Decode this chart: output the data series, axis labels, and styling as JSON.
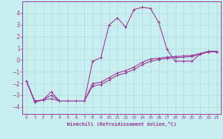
{
  "xlabel": "Windchill (Refroidissement éolien,°C)",
  "background_color": "#c8eef0",
  "grid_color": "#b0d8dc",
  "line_color": "#993399",
  "xlim": [
    -0.5,
    23.5
  ],
  "ylim": [
    -4.6,
    5.0
  ],
  "xticks": [
    0,
    1,
    2,
    3,
    4,
    5,
    6,
    7,
    8,
    9,
    10,
    11,
    12,
    13,
    14,
    15,
    16,
    17,
    18,
    19,
    20,
    21,
    22,
    23
  ],
  "yticks": [
    -4,
    -3,
    -2,
    -1,
    0,
    1,
    2,
    3,
    4
  ],
  "series1_x": [
    0,
    1,
    2,
    3,
    4,
    5,
    6,
    7,
    8,
    9,
    10,
    11,
    12,
    13,
    14,
    15,
    16,
    17,
    18,
    19,
    20,
    21,
    22,
    23
  ],
  "series1_y": [
    -1.8,
    -3.6,
    -3.4,
    -2.7,
    -3.5,
    -3.5,
    -3.5,
    -3.5,
    -0.1,
    0.2,
    3.0,
    3.6,
    2.8,
    4.3,
    4.5,
    4.4,
    3.2,
    0.9,
    -0.1,
    -0.1,
    -0.1,
    0.5,
    0.7,
    0.7
  ],
  "series2_x": [
    0,
    1,
    2,
    3,
    4,
    5,
    6,
    7,
    8,
    9,
    10,
    11,
    12,
    13,
    14,
    15,
    16,
    17,
    18,
    19,
    20,
    21,
    22,
    23
  ],
  "series2_y": [
    -1.8,
    -3.5,
    -3.4,
    -3.3,
    -3.5,
    -3.5,
    -3.5,
    -3.5,
    -2.2,
    -2.1,
    -1.7,
    -1.3,
    -1.1,
    -0.8,
    -0.4,
    -0.1,
    0.05,
    0.15,
    0.2,
    0.25,
    0.3,
    0.5,
    0.7,
    0.7
  ],
  "series3_x": [
    0,
    1,
    2,
    3,
    4,
    5,
    6,
    7,
    8,
    9,
    10,
    11,
    12,
    13,
    14,
    15,
    16,
    17,
    18,
    19,
    20,
    21,
    22,
    23
  ],
  "series3_y": [
    -1.8,
    -3.5,
    -3.4,
    -3.0,
    -3.5,
    -3.5,
    -3.5,
    -3.5,
    -2.0,
    -1.9,
    -1.5,
    -1.1,
    -0.9,
    -0.6,
    -0.2,
    0.1,
    0.15,
    0.25,
    0.3,
    0.35,
    0.4,
    0.55,
    0.75,
    0.75
  ]
}
